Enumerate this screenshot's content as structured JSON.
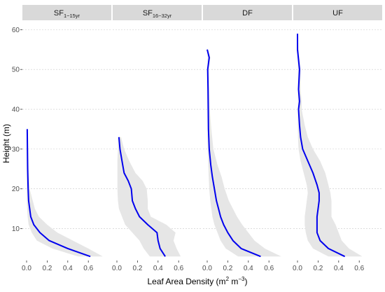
{
  "chart_data": {
    "type": "line",
    "xlabel": {
      "prefix": "Leaf Area Density (m",
      "sup1": "2",
      "mid": " m",
      "sup2": "−3",
      "suffix": ")"
    },
    "ylabel": "Height (m)",
    "xlim": [
      0,
      0.7
    ],
    "ylim": [
      2,
      62
    ],
    "x_ticks": [
      "0.0",
      "0.2",
      "0.4",
      "0.6"
    ],
    "y_ticks": [
      "10",
      "20",
      "30",
      "40",
      "50",
      "60"
    ],
    "grid": "dotted horizontal major lines",
    "colors": {
      "line": "#0000ee",
      "band": "#e6e6e6",
      "strip": "#d9d9d9"
    },
    "panels": [
      {
        "title": "SF",
        "title_sub": "1−15yr",
        "line": [
          [
            0.62,
            3
          ],
          [
            0.4,
            5
          ],
          [
            0.22,
            7
          ],
          [
            0.13,
            9
          ],
          [
            0.07,
            11
          ],
          [
            0.04,
            13
          ],
          [
            0.03,
            15
          ],
          [
            0.02,
            17
          ],
          [
            0.015,
            20
          ],
          [
            0.01,
            25
          ],
          [
            0.008,
            30
          ],
          [
            0.006,
            35
          ]
        ],
        "band_upper": [
          [
            0.74,
            3
          ],
          [
            0.6,
            5
          ],
          [
            0.45,
            7
          ],
          [
            0.3,
            9
          ],
          [
            0.2,
            11
          ],
          [
            0.12,
            13
          ],
          [
            0.08,
            15
          ],
          [
            0.06,
            17
          ],
          [
            0.03,
            20
          ],
          [
            0.02,
            25
          ],
          [
            0.015,
            30
          ],
          [
            0.01,
            35
          ]
        ],
        "band_lower": [
          [
            0.5,
            3
          ],
          [
            0.25,
            5
          ],
          [
            0.1,
            7
          ],
          [
            0.05,
            9
          ],
          [
            0.02,
            11
          ],
          [
            0.01,
            13
          ],
          [
            0.005,
            15
          ],
          [
            0.003,
            17
          ],
          [
            0.002,
            20
          ],
          [
            0.002,
            25
          ],
          [
            0.001,
            30
          ],
          [
            0.001,
            35
          ]
        ]
      },
      {
        "title": "SF",
        "title_sub": "16−32yr",
        "line": [
          [
            0.47,
            3
          ],
          [
            0.42,
            5
          ],
          [
            0.4,
            7
          ],
          [
            0.39,
            9
          ],
          [
            0.3,
            11
          ],
          [
            0.22,
            13
          ],
          [
            0.18,
            15
          ],
          [
            0.15,
            17
          ],
          [
            0.14,
            20
          ],
          [
            0.11,
            22
          ],
          [
            0.07,
            24
          ],
          [
            0.05,
            27
          ],
          [
            0.03,
            30
          ],
          [
            0.02,
            33
          ]
        ],
        "band_upper": [
          [
            0.62,
            3
          ],
          [
            0.58,
            5
          ],
          [
            0.55,
            7
          ],
          [
            0.57,
            9
          ],
          [
            0.48,
            11
          ],
          [
            0.33,
            13
          ],
          [
            0.3,
            15
          ],
          [
            0.3,
            17
          ],
          [
            0.29,
            20
          ],
          [
            0.25,
            22
          ],
          [
            0.18,
            24
          ],
          [
            0.12,
            27
          ],
          [
            0.07,
            30
          ],
          [
            0.04,
            33
          ]
        ],
        "band_lower": [
          [
            0.32,
            3
          ],
          [
            0.26,
            5
          ],
          [
            0.22,
            7
          ],
          [
            0.15,
            9
          ],
          [
            0.08,
            11
          ],
          [
            0.05,
            13
          ],
          [
            0.02,
            15
          ],
          [
            0.01,
            17
          ],
          [
            0.005,
            20
          ],
          [
            0.005,
            22
          ],
          [
            0.005,
            24
          ],
          [
            0.005,
            27
          ],
          [
            0.01,
            30
          ],
          [
            0.01,
            33
          ]
        ]
      },
      {
        "title": "DF",
        "title_sub": "",
        "line": [
          [
            0.52,
            3
          ],
          [
            0.33,
            5
          ],
          [
            0.25,
            7
          ],
          [
            0.2,
            9
          ],
          [
            0.16,
            11
          ],
          [
            0.13,
            13
          ],
          [
            0.11,
            15
          ],
          [
            0.09,
            17
          ],
          [
            0.07,
            20
          ],
          [
            0.05,
            23
          ],
          [
            0.035,
            26
          ],
          [
            0.02,
            30
          ],
          [
            0.012,
            35
          ],
          [
            0.01,
            40
          ],
          [
            0.008,
            45
          ],
          [
            0.005,
            50
          ],
          [
            0.02,
            53
          ],
          [
            0.0,
            55
          ]
        ],
        "band_upper": [
          [
            0.72,
            3
          ],
          [
            0.56,
            5
          ],
          [
            0.46,
            7
          ],
          [
            0.4,
            9
          ],
          [
            0.34,
            11
          ],
          [
            0.29,
            13
          ],
          [
            0.25,
            15
          ],
          [
            0.21,
            17
          ],
          [
            0.17,
            20
          ],
          [
            0.14,
            23
          ],
          [
            0.1,
            26
          ],
          [
            0.06,
            30
          ],
          [
            0.04,
            35
          ],
          [
            0.025,
            40
          ],
          [
            0.02,
            45
          ],
          [
            0.015,
            50
          ],
          [
            0.03,
            53
          ],
          [
            0.01,
            55
          ]
        ],
        "band_lower": [
          [
            0.3,
            3
          ],
          [
            0.18,
            5
          ],
          [
            0.13,
            7
          ],
          [
            0.1,
            9
          ],
          [
            0.07,
            11
          ],
          [
            0.05,
            13
          ],
          [
            0.04,
            15
          ],
          [
            0.03,
            17
          ],
          [
            0.02,
            20
          ],
          [
            0.015,
            23
          ],
          [
            0.01,
            26
          ],
          [
            0.005,
            30
          ],
          [
            0.003,
            35
          ],
          [
            0.002,
            40
          ],
          [
            0.001,
            45
          ],
          [
            0.001,
            50
          ],
          [
            0.005,
            53
          ],
          [
            0.0,
            55
          ]
        ]
      },
      {
        "title": "UF",
        "title_sub": "",
        "line": [
          [
            0.46,
            3
          ],
          [
            0.3,
            5
          ],
          [
            0.22,
            7
          ],
          [
            0.19,
            9
          ],
          [
            0.19,
            11
          ],
          [
            0.19,
            13
          ],
          [
            0.2,
            15
          ],
          [
            0.21,
            17
          ],
          [
            0.21,
            19
          ],
          [
            0.19,
            21
          ],
          [
            0.15,
            24
          ],
          [
            0.1,
            27
          ],
          [
            0.05,
            30
          ],
          [
            0.03,
            33
          ],
          [
            0.02,
            36
          ],
          [
            0.01,
            40
          ],
          [
            0.02,
            42
          ],
          [
            0.01,
            45
          ],
          [
            0.02,
            50
          ],
          [
            0.0,
            55
          ],
          [
            0.0,
            59
          ]
        ],
        "band_upper": [
          [
            0.63,
            3
          ],
          [
            0.5,
            5
          ],
          [
            0.43,
            7
          ],
          [
            0.4,
            9
          ],
          [
            0.37,
            11
          ],
          [
            0.33,
            13
          ],
          [
            0.33,
            15
          ],
          [
            0.33,
            17
          ],
          [
            0.32,
            19
          ],
          [
            0.3,
            21
          ],
          [
            0.27,
            24
          ],
          [
            0.22,
            27
          ],
          [
            0.15,
            30
          ],
          [
            0.1,
            33
          ],
          [
            0.07,
            36
          ],
          [
            0.04,
            40
          ],
          [
            0.04,
            42
          ],
          [
            0.03,
            45
          ],
          [
            0.03,
            50
          ],
          [
            0.01,
            55
          ],
          [
            0.005,
            59
          ]
        ],
        "band_lower": [
          [
            0.3,
            3
          ],
          [
            0.15,
            5
          ],
          [
            0.1,
            7
          ],
          [
            0.08,
            9
          ],
          [
            0.07,
            11
          ],
          [
            0.07,
            13
          ],
          [
            0.08,
            15
          ],
          [
            0.09,
            17
          ],
          [
            0.1,
            19
          ],
          [
            0.09,
            21
          ],
          [
            0.06,
            24
          ],
          [
            0.03,
            27
          ],
          [
            0.01,
            30
          ],
          [
            0.005,
            33
          ],
          [
            0.003,
            36
          ],
          [
            0.002,
            40
          ],
          [
            0.005,
            42
          ],
          [
            0.003,
            45
          ],
          [
            0.005,
            50
          ],
          [
            0.0,
            55
          ],
          [
            0.0,
            59
          ]
        ]
      }
    ]
  }
}
